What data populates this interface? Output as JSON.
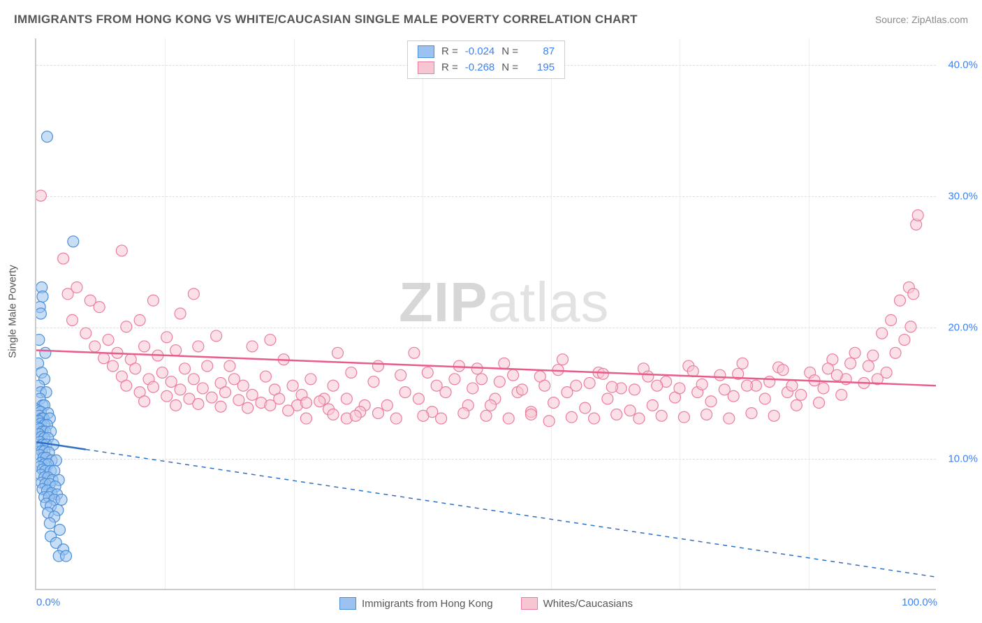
{
  "title": "IMMIGRANTS FROM HONG KONG VS WHITE/CAUCASIAN SINGLE MALE POVERTY CORRELATION CHART",
  "source": "Source: ZipAtlas.com",
  "y_axis_title": "Single Male Poverty",
  "watermark_a": "ZIP",
  "watermark_b": "atlas",
  "chart": {
    "type": "scatter",
    "xlim": [
      0,
      100
    ],
    "ylim": [
      0,
      42
    ],
    "x_ticks": [
      0,
      100
    ],
    "x_tick_labels": [
      "0.0%",
      "100.0%"
    ],
    "x_minor_ticks": [
      14.3,
      28.6,
      42.9,
      57.1,
      71.4,
      85.7
    ],
    "y_ticks": [
      10,
      20,
      30,
      40
    ],
    "y_tick_labels": [
      "10.0%",
      "20.0%",
      "30.0%",
      "40.0%"
    ],
    "background_color": "#ffffff",
    "grid_color": "#dddddd",
    "series": [
      {
        "id": "hk",
        "label": "Immigrants from Hong Kong",
        "color_fill": "#9bc2f0",
        "color_stroke": "#4a8ed8",
        "marker_radius": 8,
        "fill_opacity": 0.55,
        "R": "-0.024",
        "N": "87",
        "trend": {
          "x1": 0,
          "y1": 11.2,
          "x2": 100,
          "y2": 0.9,
          "solid_until_x": 5.5,
          "color": "#2f6fc4",
          "width": 2.5
        },
        "points": [
          [
            1.2,
            34.5
          ],
          [
            4.1,
            26.5
          ],
          [
            0.6,
            23.0
          ],
          [
            0.7,
            22.3
          ],
          [
            0.4,
            21.5
          ],
          [
            0.5,
            21.0
          ],
          [
            0.3,
            19.0
          ],
          [
            1.0,
            18.0
          ],
          [
            0.2,
            17.2
          ],
          [
            0.6,
            16.5
          ],
          [
            0.9,
            16.0
          ],
          [
            0.3,
            15.5
          ],
          [
            0.5,
            15.0
          ],
          [
            1.1,
            15.0
          ],
          [
            0.4,
            14.5
          ],
          [
            0.7,
            14.0
          ],
          [
            0.9,
            14.0
          ],
          [
            0.2,
            13.6
          ],
          [
            0.5,
            13.5
          ],
          [
            1.3,
            13.4
          ],
          [
            0.3,
            13.2
          ],
          [
            0.6,
            13.0
          ],
          [
            0.8,
            13.0
          ],
          [
            1.5,
            13.0
          ],
          [
            0.3,
            12.8
          ],
          [
            0.5,
            12.6
          ],
          [
            0.9,
            12.5
          ],
          [
            1.2,
            12.5
          ],
          [
            0.2,
            12.3
          ],
          [
            0.4,
            12.2
          ],
          [
            0.7,
            12.0
          ],
          [
            1.0,
            12.0
          ],
          [
            1.6,
            12.0
          ],
          [
            0.3,
            11.8
          ],
          [
            0.6,
            11.6
          ],
          [
            0.9,
            11.5
          ],
          [
            1.3,
            11.5
          ],
          [
            0.4,
            11.2
          ],
          [
            0.7,
            11.0
          ],
          [
            1.1,
            11.0
          ],
          [
            1.9,
            11.0
          ],
          [
            0.3,
            10.7
          ],
          [
            0.6,
            10.5
          ],
          [
            0.9,
            10.5
          ],
          [
            1.4,
            10.4
          ],
          [
            0.4,
            10.2
          ],
          [
            0.8,
            10.0
          ],
          [
            1.1,
            10.0
          ],
          [
            1.7,
            9.8
          ],
          [
            2.2,
            9.8
          ],
          [
            0.5,
            9.6
          ],
          [
            0.9,
            9.5
          ],
          [
            1.3,
            9.5
          ],
          [
            0.4,
            9.3
          ],
          [
            0.7,
            9.1
          ],
          [
            1.0,
            9.0
          ],
          [
            1.6,
            9.0
          ],
          [
            2.0,
            9.0
          ],
          [
            0.5,
            8.7
          ],
          [
            0.9,
            8.5
          ],
          [
            1.3,
            8.5
          ],
          [
            1.8,
            8.3
          ],
          [
            2.5,
            8.3
          ],
          [
            0.6,
            8.1
          ],
          [
            1.0,
            8.0
          ],
          [
            1.5,
            8.0
          ],
          [
            2.1,
            7.8
          ],
          [
            0.7,
            7.6
          ],
          [
            1.2,
            7.5
          ],
          [
            1.7,
            7.3
          ],
          [
            2.3,
            7.2
          ],
          [
            0.9,
            7.0
          ],
          [
            1.4,
            7.0
          ],
          [
            2.0,
            6.8
          ],
          [
            2.8,
            6.8
          ],
          [
            1.1,
            6.5
          ],
          [
            1.6,
            6.3
          ],
          [
            2.4,
            6.0
          ],
          [
            1.3,
            5.8
          ],
          [
            2.0,
            5.5
          ],
          [
            1.5,
            5.0
          ],
          [
            2.6,
            4.5
          ],
          [
            1.6,
            4.0
          ],
          [
            2.2,
            3.5
          ],
          [
            3.0,
            3.0
          ],
          [
            2.5,
            2.5
          ],
          [
            3.3,
            2.5
          ]
        ]
      },
      {
        "id": "white",
        "label": "Whites/Caucasians",
        "color_fill": "#f7c6d3",
        "color_stroke": "#ec7c9e",
        "marker_radius": 8,
        "fill_opacity": 0.55,
        "R": "-0.268",
        "N": "195",
        "trend": {
          "x1": 0,
          "y1": 18.2,
          "x2": 100,
          "y2": 15.5,
          "solid_until_x": 100,
          "color": "#e85c8a",
          "width": 2.5
        },
        "points": [
          [
            0.5,
            30.0
          ],
          [
            3.0,
            25.2
          ],
          [
            4.5,
            23.0
          ],
          [
            9.5,
            25.8
          ],
          [
            3.5,
            22.5
          ],
          [
            6.0,
            22.0
          ],
          [
            4.0,
            20.5
          ],
          [
            7.0,
            21.5
          ],
          [
            10.0,
            20.0
          ],
          [
            5.5,
            19.5
          ],
          [
            8.0,
            19.0
          ],
          [
            11.5,
            20.5
          ],
          [
            13.0,
            22.0
          ],
          [
            6.5,
            18.5
          ],
          [
            9.0,
            18.0
          ],
          [
            12.0,
            18.5
          ],
          [
            14.5,
            19.2
          ],
          [
            16.0,
            21.0
          ],
          [
            17.5,
            22.5
          ],
          [
            7.5,
            17.6
          ],
          [
            10.5,
            17.5
          ],
          [
            13.5,
            17.8
          ],
          [
            15.5,
            18.2
          ],
          [
            18.0,
            18.5
          ],
          [
            20.0,
            19.3
          ],
          [
            21.5,
            17.0
          ],
          [
            8.5,
            17.0
          ],
          [
            11.0,
            16.8
          ],
          [
            14.0,
            16.5
          ],
          [
            16.5,
            16.8
          ],
          [
            19.0,
            17.0
          ],
          [
            22.0,
            16.0
          ],
          [
            24.0,
            18.5
          ],
          [
            26.0,
            19.0
          ],
          [
            9.5,
            16.2
          ],
          [
            12.5,
            16.0
          ],
          [
            15.0,
            15.8
          ],
          [
            17.5,
            16.0
          ],
          [
            20.5,
            15.7
          ],
          [
            23.0,
            15.5
          ],
          [
            25.5,
            16.2
          ],
          [
            27.5,
            17.5
          ],
          [
            29.0,
            14.0
          ],
          [
            10.0,
            15.5
          ],
          [
            13.0,
            15.4
          ],
          [
            16.0,
            15.2
          ],
          [
            18.5,
            15.3
          ],
          [
            21.0,
            15.0
          ],
          [
            24.0,
            14.8
          ],
          [
            26.5,
            15.2
          ],
          [
            28.5,
            15.5
          ],
          [
            30.5,
            16.0
          ],
          [
            32.0,
            14.5
          ],
          [
            33.5,
            18.0
          ],
          [
            34.5,
            13.0
          ],
          [
            11.5,
            15.0
          ],
          [
            14.5,
            14.7
          ],
          [
            17.0,
            14.5
          ],
          [
            19.5,
            14.6
          ],
          [
            22.5,
            14.4
          ],
          [
            25.0,
            14.2
          ],
          [
            27.0,
            14.5
          ],
          [
            29.5,
            14.8
          ],
          [
            31.5,
            14.3
          ],
          [
            33.0,
            15.5
          ],
          [
            35.0,
            16.5
          ],
          [
            36.5,
            14.0
          ],
          [
            38.0,
            17.0
          ],
          [
            12.0,
            14.3
          ],
          [
            15.5,
            14.0
          ],
          [
            18.0,
            14.1
          ],
          [
            20.5,
            13.9
          ],
          [
            23.5,
            13.8
          ],
          [
            26.0,
            14.0
          ],
          [
            28.0,
            13.6
          ],
          [
            30.0,
            14.2
          ],
          [
            32.5,
            13.7
          ],
          [
            34.5,
            14.5
          ],
          [
            36.0,
            13.5
          ],
          [
            37.5,
            15.8
          ],
          [
            39.0,
            14.0
          ],
          [
            40.5,
            16.3
          ],
          [
            42.0,
            18.0
          ],
          [
            42.5,
            14.5
          ],
          [
            44.0,
            13.5
          ],
          [
            45.5,
            15.0
          ],
          [
            47.0,
            17.0
          ],
          [
            48.0,
            14.0
          ],
          [
            49.5,
            16.0
          ],
          [
            51.0,
            14.5
          ],
          [
            52.0,
            17.2
          ],
          [
            53.5,
            15.0
          ],
          [
            55.0,
            13.5
          ],
          [
            56.0,
            16.2
          ],
          [
            57.5,
            14.2
          ],
          [
            58.5,
            17.5
          ],
          [
            60.0,
            15.5
          ],
          [
            61.0,
            13.8
          ],
          [
            62.5,
            16.5
          ],
          [
            63.5,
            14.5
          ],
          [
            65.0,
            15.3
          ],
          [
            66.0,
            13.6
          ],
          [
            67.5,
            16.8
          ],
          [
            68.5,
            14.0
          ],
          [
            70.0,
            15.8
          ],
          [
            71.0,
            14.6
          ],
          [
            72.5,
            17.0
          ],
          [
            73.5,
            15.0
          ],
          [
            75.0,
            14.3
          ],
          [
            76.0,
            16.3
          ],
          [
            77.5,
            14.7
          ],
          [
            78.5,
            17.2
          ],
          [
            80.0,
            15.5
          ],
          [
            81.0,
            14.5
          ],
          [
            82.5,
            16.9
          ],
          [
            83.5,
            15.0
          ],
          [
            85.0,
            14.8
          ],
          [
            86.0,
            16.5
          ],
          [
            87.5,
            15.3
          ],
          [
            88.5,
            17.5
          ],
          [
            90.0,
            16.0
          ],
          [
            91.0,
            18.0
          ],
          [
            92.0,
            15.7
          ],
          [
            93.0,
            17.8
          ],
          [
            94.0,
            19.5
          ],
          [
            94.5,
            16.5
          ],
          [
            95.0,
            20.5
          ],
          [
            95.5,
            18.0
          ],
          [
            96.0,
            22.0
          ],
          [
            96.5,
            19.0
          ],
          [
            97.0,
            23.0
          ],
          [
            97.2,
            20.0
          ],
          [
            97.5,
            22.5
          ],
          [
            97.8,
            27.8
          ],
          [
            98.0,
            28.5
          ],
          [
            30.0,
            13.0
          ],
          [
            33.0,
            13.3
          ],
          [
            35.5,
            13.2
          ],
          [
            38.0,
            13.4
          ],
          [
            40.0,
            13.0
          ],
          [
            43.0,
            13.2
          ],
          [
            45.0,
            13.0
          ],
          [
            47.5,
            13.4
          ],
          [
            50.0,
            13.2
          ],
          [
            52.5,
            13.0
          ],
          [
            55.0,
            13.3
          ],
          [
            57.0,
            12.8
          ],
          [
            59.5,
            13.1
          ],
          [
            62.0,
            13.0
          ],
          [
            64.5,
            13.3
          ],
          [
            67.0,
            13.0
          ],
          [
            69.5,
            13.2
          ],
          [
            72.0,
            13.1
          ],
          [
            74.5,
            13.3
          ],
          [
            77.0,
            13.0
          ],
          [
            79.5,
            13.4
          ],
          [
            82.0,
            13.2
          ],
          [
            84.5,
            14.0
          ],
          [
            87.0,
            14.2
          ],
          [
            89.5,
            14.8
          ],
          [
            41.0,
            15.0
          ],
          [
            44.5,
            15.5
          ],
          [
            48.5,
            15.3
          ],
          [
            51.5,
            15.8
          ],
          [
            54.0,
            15.2
          ],
          [
            56.5,
            15.5
          ],
          [
            59.0,
            15.0
          ],
          [
            61.5,
            15.7
          ],
          [
            64.0,
            15.4
          ],
          [
            66.5,
            15.2
          ],
          [
            69.0,
            15.5
          ],
          [
            71.5,
            15.3
          ],
          [
            74.0,
            15.6
          ],
          [
            76.5,
            15.2
          ],
          [
            79.0,
            15.5
          ],
          [
            81.5,
            15.8
          ],
          [
            84.0,
            15.5
          ],
          [
            86.5,
            15.9
          ],
          [
            89.0,
            16.3
          ],
          [
            43.5,
            16.5
          ],
          [
            46.5,
            16.0
          ],
          [
            49.0,
            16.8
          ],
          [
            53.0,
            16.3
          ],
          [
            58.0,
            16.7
          ],
          [
            63.0,
            16.4
          ],
          [
            68.0,
            16.2
          ],
          [
            73.0,
            16.6
          ],
          [
            78.0,
            16.4
          ],
          [
            83.0,
            16.7
          ],
          [
            88.0,
            16.8
          ],
          [
            90.5,
            17.2
          ],
          [
            92.5,
            17.0
          ],
          [
            93.5,
            16.0
          ],
          [
            50.5,
            14.0
          ]
        ]
      }
    ]
  },
  "stats_box": {
    "labels": {
      "R": "R =",
      "N": "N ="
    }
  }
}
